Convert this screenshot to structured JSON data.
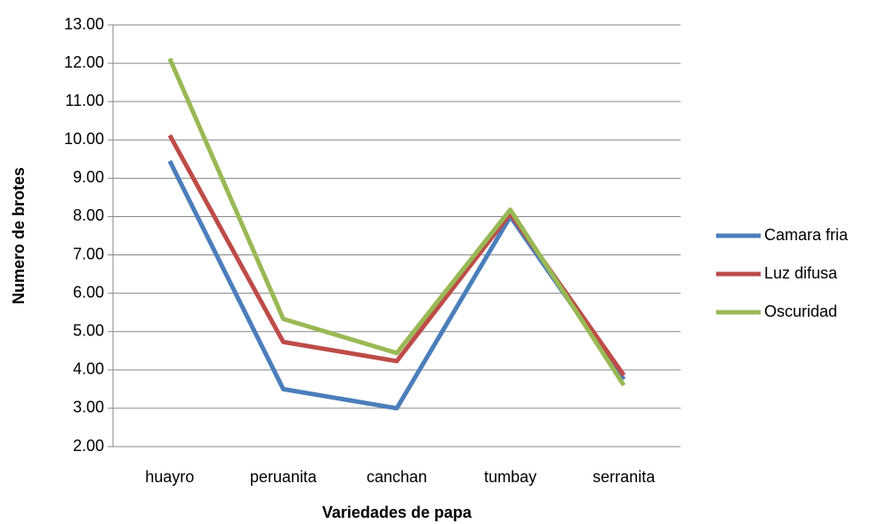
{
  "chart_data": {
    "type": "line",
    "x_label": "Variedades de papa",
    "y_label": "Numero de brotes",
    "categories": [
      "huayro",
      "peruanita",
      "canchan",
      "tumbay",
      "serranita"
    ],
    "series": [
      {
        "name": "Camara fria",
        "color": "#4a7ebb",
        "values": [
          9.45,
          3.5,
          3.0,
          8.0,
          3.75
        ]
      },
      {
        "name": "Luz difusa",
        "color": "#be4b48",
        "values": [
          10.12,
          4.73,
          4.23,
          8.08,
          3.86
        ]
      },
      {
        "name": "Oscuridad",
        "color": "#98b954",
        "values": [
          12.12,
          5.33,
          4.44,
          8.18,
          3.6
        ]
      }
    ],
    "ylim": [
      2,
      13
    ],
    "yticks": [
      {
        "value": 2,
        "label": "2.00"
      },
      {
        "value": 3,
        "label": "3.00"
      },
      {
        "value": 4,
        "label": "4.00"
      },
      {
        "value": 5,
        "label": "5.00"
      },
      {
        "value": 6,
        "label": "6.00"
      },
      {
        "value": 7,
        "label": "7.00"
      },
      {
        "value": 8,
        "label": "8.00"
      },
      {
        "value": 9,
        "label": "9.00"
      },
      {
        "value": 10,
        "label": "10.00"
      },
      {
        "value": 11,
        "label": "11.00"
      },
      {
        "value": 12,
        "label": "12.00"
      },
      {
        "value": 13,
        "label": "13.00"
      }
    ],
    "grid": true,
    "legend": "right"
  }
}
